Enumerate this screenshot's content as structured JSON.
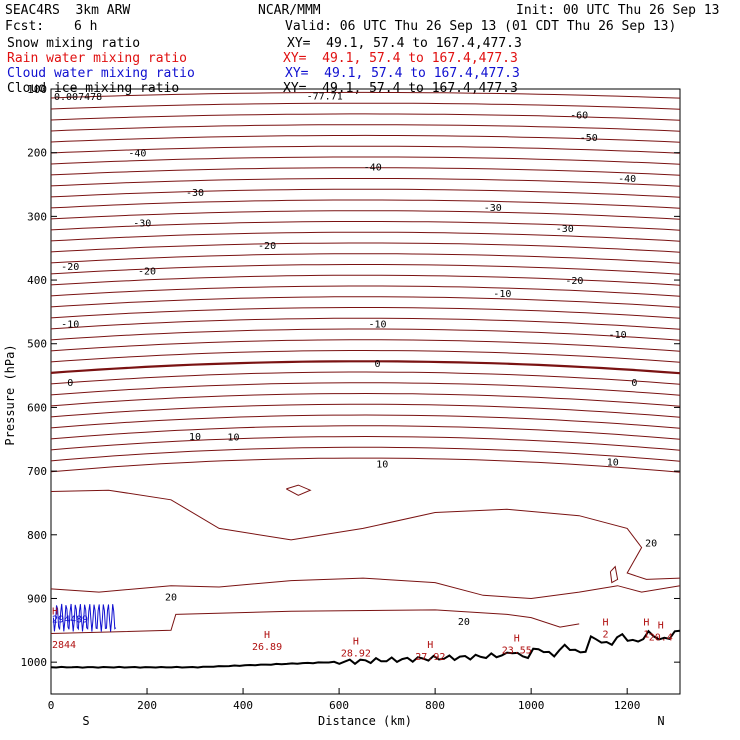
{
  "header": {
    "model": "SEAC4RS  3km ARW",
    "org": "NCAR/MMM",
    "init": "Init: 00 UTC Thu 26 Sep 13",
    "fcst_label": "Fcst:",
    "fcst_value": "6 h",
    "valid": "Valid: 06 UTC Thu 26 Sep 13 (01 CDT Thu 26 Sep 13)"
  },
  "fields": [
    {
      "name": "Snow mixing ratio",
      "xy": "XY=  49.1, 57.4 to 167.4,477.3",
      "color": "#000000"
    },
    {
      "name": "Rain water mixing ratio",
      "xy": "XY=  49.1, 57.4 to 167.4,477.3",
      "color": "#e01010"
    },
    {
      "name": "Cloud water mixing ratio",
      "xy": "XY=  49.1, 57.4 to 167.4,477.3",
      "color": "#1010d0"
    },
    {
      "name": "Cloud ice mixing ratio",
      "xy": "XY=  49.1, 57.4 to 167.4,477.3",
      "color": "#000000"
    }
  ],
  "chart_data": {
    "type": "cross-section contour",
    "xlabel": "Distance (km)",
    "ylabel": "Pressure (hPa)",
    "xlim": [
      0,
      1310
    ],
    "ylim": [
      1050,
      100
    ],
    "x_ticks": [
      0,
      200,
      400,
      600,
      800,
      1000,
      1200
    ],
    "y_ticks": [
      100,
      200,
      300,
      400,
      500,
      600,
      700,
      800,
      900,
      1000
    ],
    "left_end_label": "S",
    "right_end_label": "N",
    "corner_label": "0.007478",
    "colors": {
      "contour": "#7a1212",
      "terrain": "#000000",
      "cloud_water": "#1010d0",
      "rain": "#b01010"
    },
    "isotherms_upper": [
      {
        "p": 110,
        "label": "-77.71",
        "label_x": 570
      },
      {
        "p": 140,
        "label": "-60",
        "label_x": 1100
      },
      {
        "p": 175,
        "label": "-50",
        "label_x": 1120
      },
      {
        "p": 200,
        "label": "-40",
        "label_x": 180
      },
      {
        "p": 222,
        "label": "-40",
        "label_x": 670
      },
      {
        "p": 262,
        "label": "-30",
        "label_x": 300
      },
      {
        "p": 285,
        "label": "-30",
        "label_x": 920
      },
      {
        "p": 345,
        "label": "-20",
        "label_x": 450
      },
      {
        "p": 420,
        "label": "-10",
        "label_x": 940
      },
      {
        "p": 468,
        "label": "-10",
        "label_x": 680
      },
      {
        "p": 530,
        "label": "0",
        "label_x": 680
      },
      {
        "p": 645,
        "label": "10",
        "label_x": 300
      },
      {
        "p": 688,
        "label": "10",
        "label_x": 690
      }
    ],
    "extra_labels": [
      {
        "x": 1200,
        "p": 240,
        "text": "-40"
      },
      {
        "x": 190,
        "p": 310,
        "text": "-30"
      },
      {
        "x": 1070,
        "p": 318,
        "text": "-30"
      },
      {
        "x": 40,
        "p": 378,
        "text": "-20"
      },
      {
        "x": 200,
        "p": 385,
        "text": "-20"
      },
      {
        "x": 1090,
        "p": 400,
        "text": "-20"
      },
      {
        "x": 40,
        "p": 468,
        "text": "-10"
      },
      {
        "x": 1180,
        "p": 485,
        "text": "-10"
      },
      {
        "x": 40,
        "p": 560,
        "text": "0"
      },
      {
        "x": 1215,
        "p": 560,
        "text": "0"
      },
      {
        "x": 380,
        "p": 646,
        "text": "10"
      },
      {
        "x": 1170,
        "p": 685,
        "text": "10"
      },
      {
        "x": 250,
        "p": 897,
        "text": "20"
      },
      {
        "x": 1250,
        "p": 812,
        "text": "20"
      },
      {
        "x": 860,
        "p": 935,
        "text": "20"
      }
    ],
    "highs": [
      {
        "x": 450,
        "p": 975,
        "label": "26.89"
      },
      {
        "x": 635,
        "p": 985,
        "label": "28.92"
      },
      {
        "x": 790,
        "p": 990,
        "label": "27.92"
      },
      {
        "x": 970,
        "p": 980,
        "label": "23.55"
      },
      {
        "x": 1155,
        "p": 955,
        "label": "2"
      },
      {
        "x": 1240,
        "p": 955,
        "label": "1"
      },
      {
        "x": 1270,
        "p": 960,
        "label": "20.4"
      }
    ],
    "cloud_water_label": {
      "x": 2,
      "p": 938,
      "text": "294489"
    },
    "rain_label": {
      "x": 2,
      "p": 978,
      "text": "2844"
    },
    "rain_marker": {
      "x": 2,
      "p": 925,
      "text": "H"
    }
  }
}
